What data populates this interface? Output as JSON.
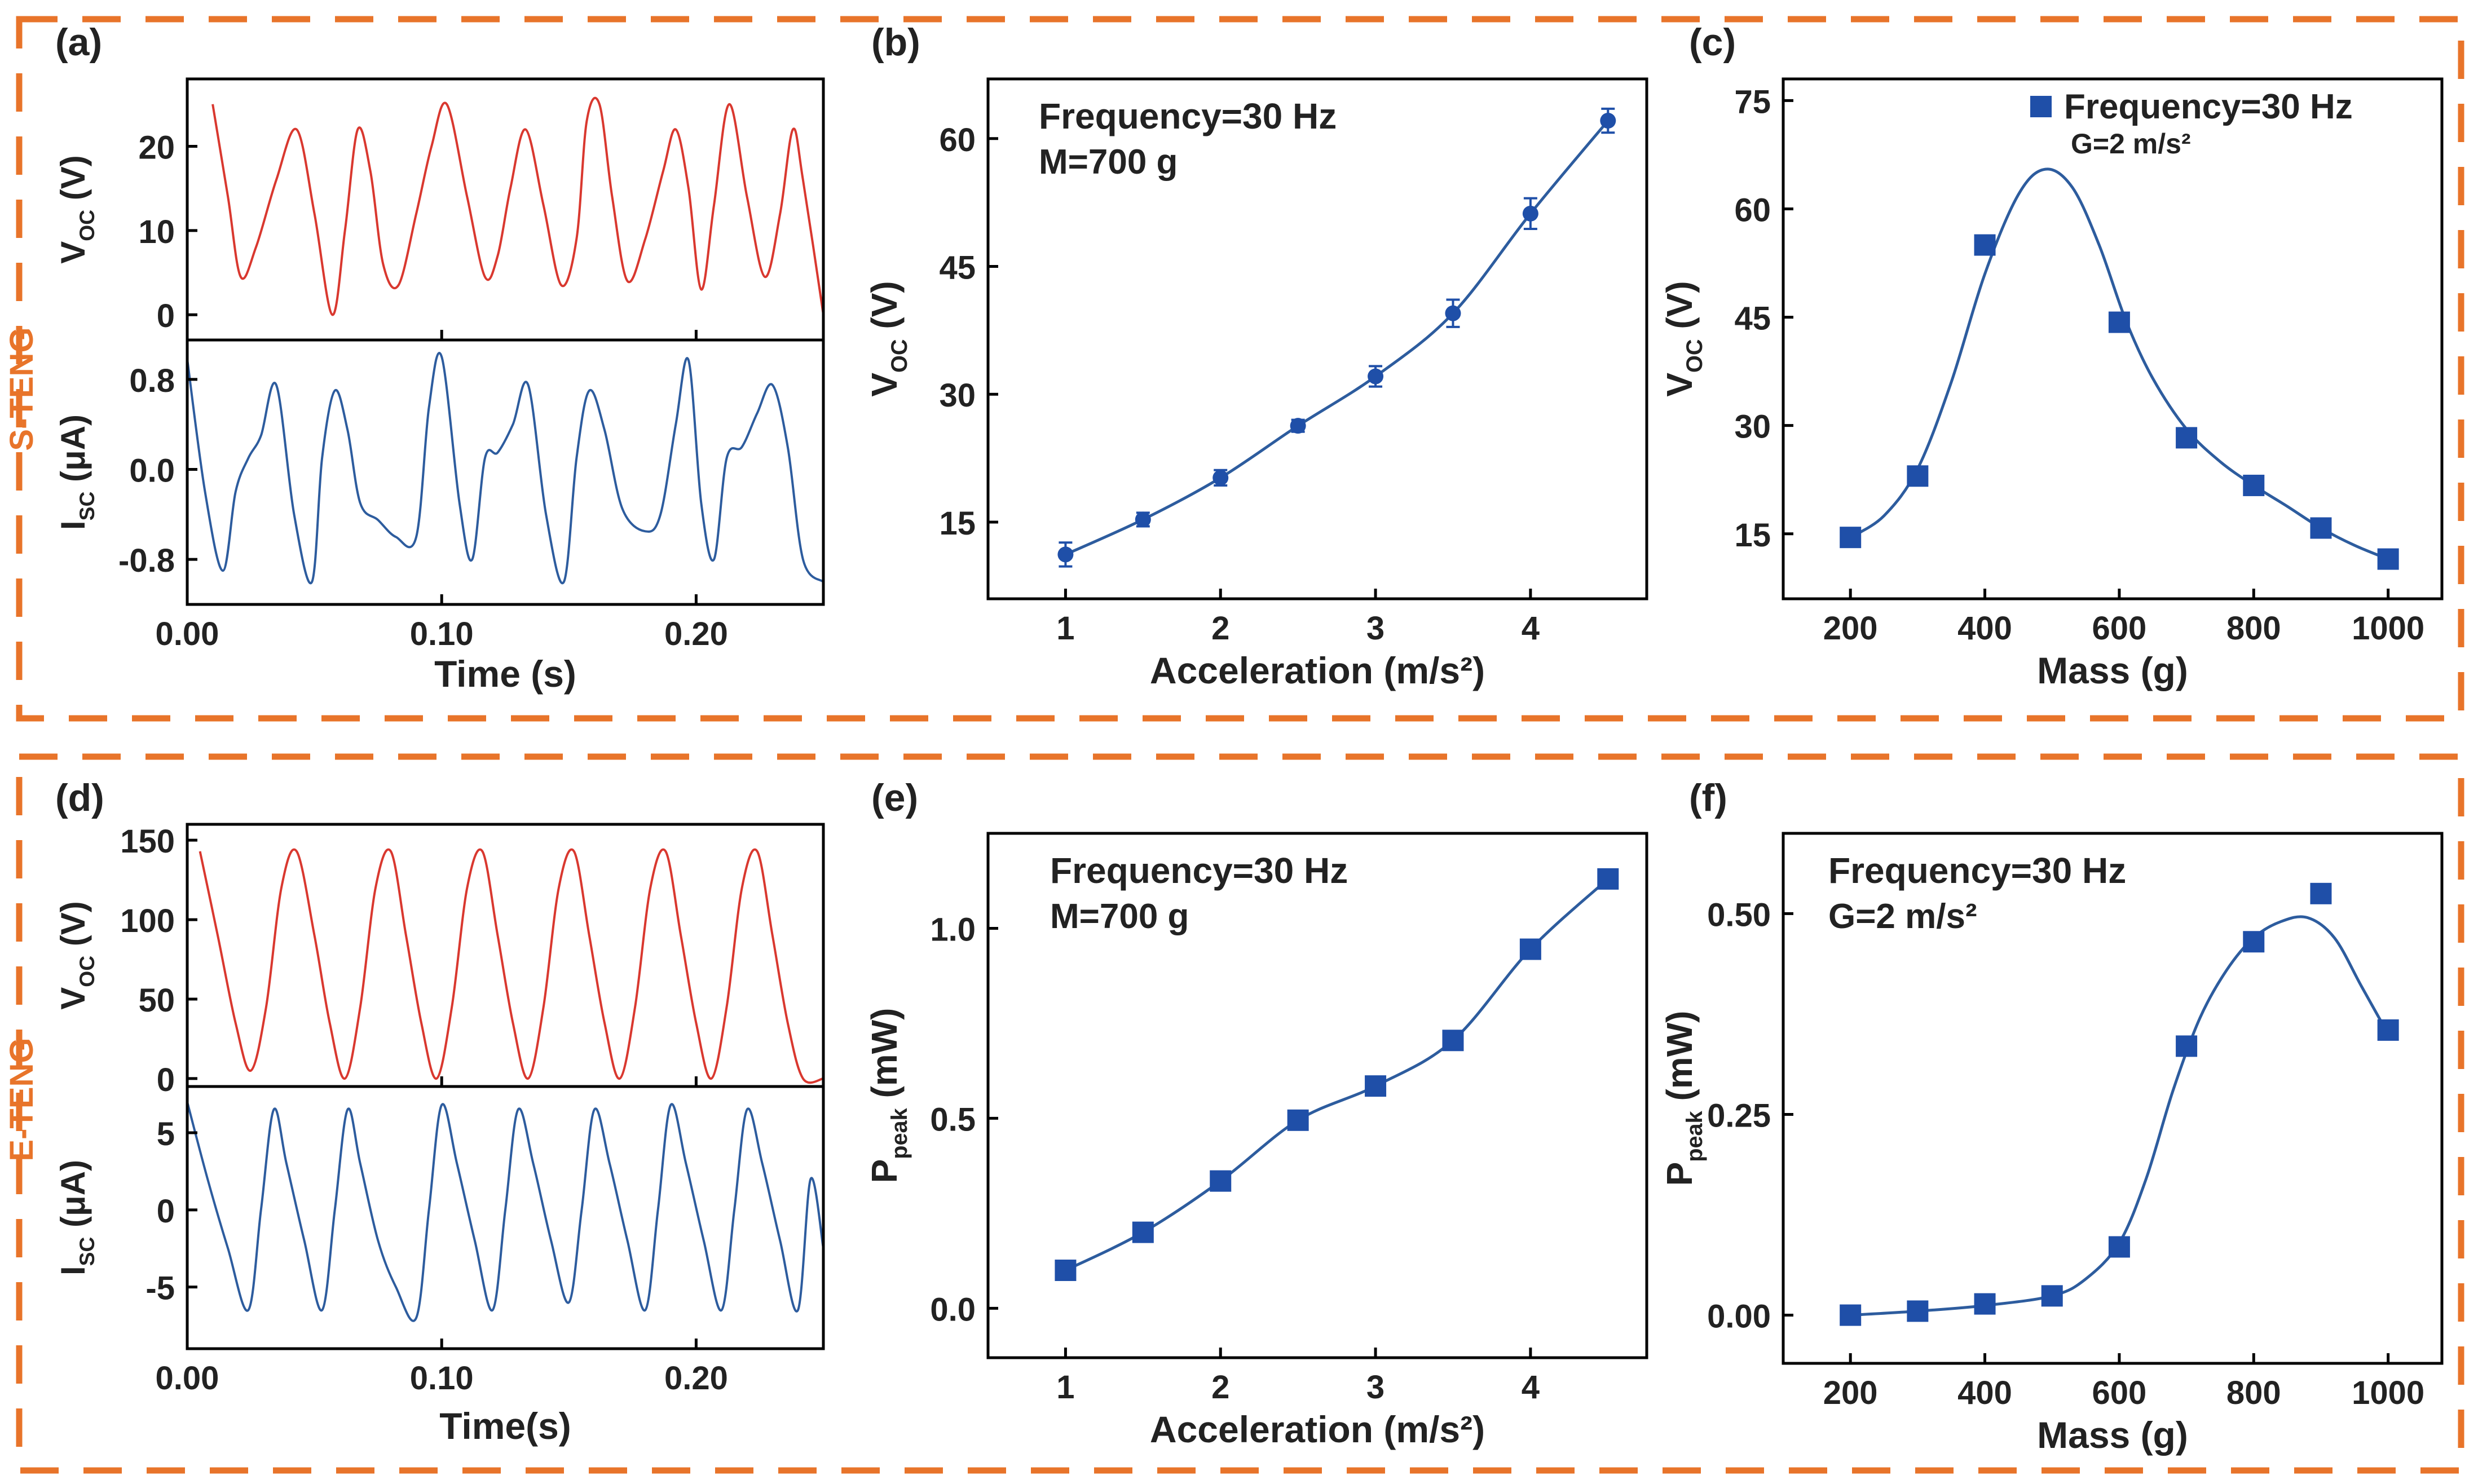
{
  "colors": {
    "frame": "#E8742A",
    "red": "#D9382F",
    "blue": "#2D5C9E",
    "marker": "#1F4FA8",
    "axis": "#000000",
    "text": "#222222"
  },
  "groups": [
    {
      "label": "S-TENG"
    },
    {
      "label": "E-TENG"
    }
  ],
  "chart_data": [
    {
      "id": "a",
      "panel_label": "(a)",
      "type": "line",
      "xlabel": "Time (s)",
      "xlim": [
        0,
        0.25
      ],
      "xticks": [
        {
          "v": 0.0,
          "label": "0.00"
        },
        {
          "v": 0.1,
          "label": "0.10"
        },
        {
          "v": 0.2,
          "label": "0.20"
        }
      ],
      "subplots": [
        {
          "ylabel_main": "V",
          "ylabel_sub": "OC",
          "ylabel_tail": " (V)",
          "ylim": [
            -3,
            28
          ],
          "yticks": [
            {
              "v": 0,
              "label": "0"
            },
            {
              "v": 10,
              "label": "10"
            },
            {
              "v": 20,
              "label": "20"
            }
          ],
          "color_key": "red",
          "series": {
            "name": "VOC",
            "x": [
              0.01,
              0.016,
              0.021,
              0.027,
              0.035,
              0.043,
              0.05,
              0.057,
              0.062,
              0.067,
              0.072,
              0.077,
              0.083,
              0.09,
              0.096,
              0.102,
              0.11,
              0.117,
              0.122,
              0.127,
              0.133,
              0.14,
              0.147,
              0.153,
              0.157,
              0.162,
              0.167,
              0.173,
              0.18,
              0.187,
              0.192,
              0.197,
              0.202,
              0.207,
              0.213,
              0.22,
              0.227,
              0.233,
              0.238,
              0.242,
              0.25
            ],
            "values": [
              25,
              14,
              4.5,
              8,
              16,
              22,
              12,
              0,
              10,
              22,
              17,
              6,
              3.5,
              12,
              20,
              25,
              14,
              4.5,
              7,
              15,
              22,
              13,
              3.5,
              9,
              23,
              25,
              14,
              4,
              9,
              17,
              22,
              15,
              3,
              13,
              25,
              14,
              4.5,
              12,
              22,
              16,
              0
            ]
          }
        },
        {
          "ylabel_main": "I",
          "ylabel_sub": "SC",
          "ylabel_tail": " (μA)",
          "ylim": [
            -1.2,
            1.15
          ],
          "yticks": [
            {
              "v": -0.8,
              "label": "-0.8"
            },
            {
              "v": 0.0,
              "label": "0.0"
            },
            {
              "v": 0.8,
              "label": "0.8"
            }
          ],
          "color_key": "blue",
          "series": {
            "name": "ISC",
            "x": [
              0.0,
              0.007,
              0.014,
              0.019,
              0.024,
              0.029,
              0.035,
              0.042,
              0.049,
              0.053,
              0.058,
              0.063,
              0.068,
              0.075,
              0.082,
              0.09,
              0.095,
              0.1,
              0.107,
              0.112,
              0.117,
              0.122,
              0.128,
              0.134,
              0.141,
              0.148,
              0.153,
              0.158,
              0.164,
              0.171,
              0.18,
              0.186,
              0.192,
              0.197,
              0.202,
              0.207,
              0.212,
              0.218,
              0.224,
              0.23,
              0.236,
              0.242,
              0.25
            ],
            "values": [
              0.98,
              -0.2,
              -0.9,
              -0.2,
              0.1,
              0.3,
              0.75,
              -0.4,
              -1.0,
              0.1,
              0.7,
              0.35,
              -0.3,
              -0.45,
              -0.6,
              -0.6,
              0.55,
              1.0,
              -0.3,
              -0.8,
              0.1,
              0.15,
              0.4,
              0.75,
              -0.4,
              -1.0,
              0.1,
              0.7,
              0.35,
              -0.35,
              -0.55,
              -0.4,
              0.4,
              0.97,
              -0.3,
              -0.8,
              0.1,
              0.2,
              0.5,
              0.75,
              0.2,
              -0.8,
              -1.0
            ]
          }
        }
      ]
    },
    {
      "id": "b",
      "panel_label": "(b)",
      "type": "scatter",
      "title": "",
      "annotation": [
        "Frequency=30 Hz",
        "M=700 g"
      ],
      "xlabel": "Acceleration (m/s²)",
      "ylabel_main": "V",
      "ylabel_sub": "OC",
      "ylabel_tail": "  (V)",
      "xlim": [
        0.5,
        4.75
      ],
      "ylim": [
        6,
        67
      ],
      "xticks": [
        {
          "v": 1,
          "label": "1"
        },
        {
          "v": 2,
          "label": "2"
        },
        {
          "v": 3,
          "label": "3"
        },
        {
          "v": 4,
          "label": "4"
        }
      ],
      "yticks": [
        {
          "v": 15,
          "label": "15"
        },
        {
          "v": 30,
          "label": "30"
        },
        {
          "v": 45,
          "label": "45"
        },
        {
          "v": 60,
          "label": "60"
        }
      ],
      "marker": "circle",
      "curve": "linear",
      "x": [
        1,
        1.5,
        2,
        2.5,
        3,
        3.5,
        4,
        4.5
      ],
      "values": [
        11.2,
        15.3,
        20.2,
        26.3,
        32.1,
        39.5,
        51.2,
        62.1
      ],
      "errors": [
        1.4,
        0.8,
        0.9,
        0.7,
        1.2,
        1.6,
        1.8,
        1.4
      ]
    },
    {
      "id": "c",
      "panel_label": "(c)",
      "type": "scatter",
      "legend": "Frequency=30 Hz",
      "annotation": [
        "G=2 m/s²"
      ],
      "xlabel": "Mass (g)",
      "ylabel_main": "V",
      "ylabel_sub": "OC",
      "ylabel_tail": "  (V)",
      "xlim": [
        100,
        1080
      ],
      "ylim": [
        6,
        78
      ],
      "xticks": [
        {
          "v": 200,
          "label": "200"
        },
        {
          "v": 400,
          "label": "400"
        },
        {
          "v": 600,
          "label": "600"
        },
        {
          "v": 800,
          "label": "800"
        },
        {
          "v": 1000,
          "label": "1000"
        }
      ],
      "yticks": [
        {
          "v": 15,
          "label": "15"
        },
        {
          "v": 30,
          "label": "30"
        },
        {
          "v": 45,
          "label": "45"
        },
        {
          "v": 60,
          "label": "60"
        },
        {
          "v": 75,
          "label": "75"
        }
      ],
      "marker": "square",
      "x": [
        200,
        300,
        400,
        600,
        700,
        800,
        900,
        1000
      ],
      "values": [
        14.5,
        23,
        55,
        44.3,
        28.3,
        21.7,
        15.8,
        11.5
      ],
      "fit": {
        "x": [
          200,
          250,
          300,
          350,
          400,
          450,
          490,
          530,
          570,
          610,
          650,
          700,
          750,
          800,
          850,
          900,
          950,
          1000
        ],
        "values": [
          14.5,
          17.5,
          24,
          36,
          51,
          62,
          65.5,
          63,
          55,
          44.5,
          36.5,
          29.5,
          25,
          21.7,
          18.8,
          15.8,
          13.4,
          11.5
        ]
      }
    },
    {
      "id": "d",
      "panel_label": "(d)",
      "type": "line",
      "xlabel": "Time(s)",
      "xlim": [
        0,
        0.25
      ],
      "xticks": [
        {
          "v": 0.0,
          "label": "0.00"
        },
        {
          "v": 0.1,
          "label": "0.10"
        },
        {
          "v": 0.2,
          "label": "0.20"
        }
      ],
      "subplots": [
        {
          "ylabel_main": "V",
          "ylabel_sub": "OC",
          "ylabel_tail": " (V)",
          "ylim": [
            -5,
            160
          ],
          "yticks": [
            {
              "v": 0,
              "label": "0"
            },
            {
              "v": 50,
              "label": "50"
            },
            {
              "v": 100,
              "label": "100"
            },
            {
              "v": 150,
              "label": "150"
            }
          ],
          "color_key": "red",
          "series": {
            "name": "VOC",
            "x": [
              0.005,
              0.012,
              0.019,
              0.025,
              0.031,
              0.037,
              0.043,
              0.05,
              0.056,
              0.062,
              0.068,
              0.074,
              0.08,
              0.086,
              0.092,
              0.098,
              0.104,
              0.11,
              0.116,
              0.122,
              0.128,
              0.134,
              0.14,
              0.146,
              0.152,
              0.158,
              0.164,
              0.17,
              0.176,
              0.182,
              0.188,
              0.194,
              0.2,
              0.206,
              0.212,
              0.218,
              0.224,
              0.23,
              0.236,
              0.242,
              0.25
            ],
            "values": [
              143,
              90,
              35,
              5,
              45,
              120,
              143,
              90,
              35,
              0,
              45,
              120,
              143,
              90,
              35,
              0,
              45,
              120,
              143,
              90,
              35,
              0,
              45,
              120,
              143,
              90,
              35,
              0,
              45,
              120,
              143,
              90,
              35,
              0,
              45,
              120,
              143,
              90,
              35,
              0,
              0
            ]
          }
        },
        {
          "ylabel_main": "I",
          "ylabel_sub": "SC",
          "ylabel_tail": " (μA)",
          "ylim": [
            -9,
            8
          ],
          "yticks": [
            {
              "v": -5,
              "label": "-5"
            },
            {
              "v": 0,
              "label": "0"
            },
            {
              "v": 5,
              "label": "5"
            }
          ],
          "color_key": "blue",
          "series": {
            "name": "ISC",
            "x": [
              0.0,
              0.008,
              0.016,
              0.024,
              0.029,
              0.034,
              0.039,
              0.046,
              0.053,
              0.058,
              0.063,
              0.068,
              0.075,
              0.082,
              0.09,
              0.095,
              0.1,
              0.106,
              0.113,
              0.12,
              0.125,
              0.13,
              0.136,
              0.143,
              0.15,
              0.155,
              0.16,
              0.166,
              0.173,
              0.18,
              0.185,
              0.19,
              0.196,
              0.203,
              0.21,
              0.215,
              0.22,
              0.226,
              0.233,
              0.24,
              0.245,
              0.25
            ],
            "values": [
              7,
              2,
              -2.5,
              -6.5,
              0,
              6.5,
              3,
              -2,
              -6.5,
              0,
              6.5,
              3,
              -2,
              -5,
              -7,
              0,
              6.8,
              3,
              -2,
              -6.5,
              0,
              6.5,
              3,
              -2,
              -6,
              0,
              6.5,
              3,
              -2,
              -6.5,
              0,
              6.8,
              3,
              -2,
              -6.5,
              0,
              6.5,
              3,
              -2,
              -6.5,
              2,
              -2.5
            ]
          }
        }
      ]
    },
    {
      "id": "e",
      "panel_label": "(e)",
      "type": "scatter",
      "annotation": [
        "Frequency=30 Hz",
        "M=700 g"
      ],
      "xlabel": "Acceleration (m/s²)",
      "ylabel_main": "P",
      "ylabel_sub": "peak",
      "ylabel_tail": "  (mW)",
      "xlim": [
        0.5,
        4.75
      ],
      "ylim": [
        -0.13,
        1.25
      ],
      "xticks": [
        {
          "v": 1,
          "label": "1"
        },
        {
          "v": 2,
          "label": "2"
        },
        {
          "v": 3,
          "label": "3"
        },
        {
          "v": 4,
          "label": "4"
        }
      ],
      "yticks": [
        {
          "v": 0.0,
          "label": "0.0"
        },
        {
          "v": 0.5,
          "label": "0.5"
        },
        {
          "v": 1.0,
          "label": "1.0"
        }
      ],
      "marker": "square",
      "curve": "linear",
      "x": [
        1,
        1.5,
        2,
        2.5,
        3,
        3.5,
        4,
        4.5
      ],
      "values": [
        0.1,
        0.2,
        0.335,
        0.495,
        0.585,
        0.705,
        0.945,
        1.13
      ]
    },
    {
      "id": "f",
      "panel_label": "(f)",
      "type": "scatter",
      "annotation": [
        "Frequency=30 Hz",
        "G=2 m/s²"
      ],
      "xlabel": "Mass (g)",
      "ylabel_main": "P",
      "ylabel_sub": "peak",
      "ylabel_tail": "  (mW)",
      "xlim": [
        100,
        1080
      ],
      "ylim": [
        -0.06,
        0.6
      ],
      "xticks": [
        {
          "v": 200,
          "label": "200"
        },
        {
          "v": 400,
          "label": "400"
        },
        {
          "v": 600,
          "label": "600"
        },
        {
          "v": 800,
          "label": "800"
        },
        {
          "v": 1000,
          "label": "1000"
        }
      ],
      "yticks": [
        {
          "v": 0.0,
          "label": "0.00"
        },
        {
          "v": 0.25,
          "label": "0.25"
        },
        {
          "v": 0.5,
          "label": "0.50"
        }
      ],
      "marker": "square",
      "x": [
        200,
        300,
        400,
        500,
        600,
        700,
        800,
        900,
        1000
      ],
      "values": [
        0.0,
        0.005,
        0.014,
        0.024,
        0.085,
        0.335,
        0.465,
        0.525,
        0.355
      ],
      "fit": {
        "x": [
          200,
          300,
          400,
          500,
          550,
          600,
          640,
          680,
          720,
          760,
          800,
          840,
          880,
          920,
          960,
          1000
        ],
        "values": [
          0.0,
          0.005,
          0.012,
          0.024,
          0.045,
          0.09,
          0.17,
          0.28,
          0.37,
          0.43,
          0.47,
          0.49,
          0.495,
          0.47,
          0.41,
          0.35
        ]
      }
    }
  ]
}
